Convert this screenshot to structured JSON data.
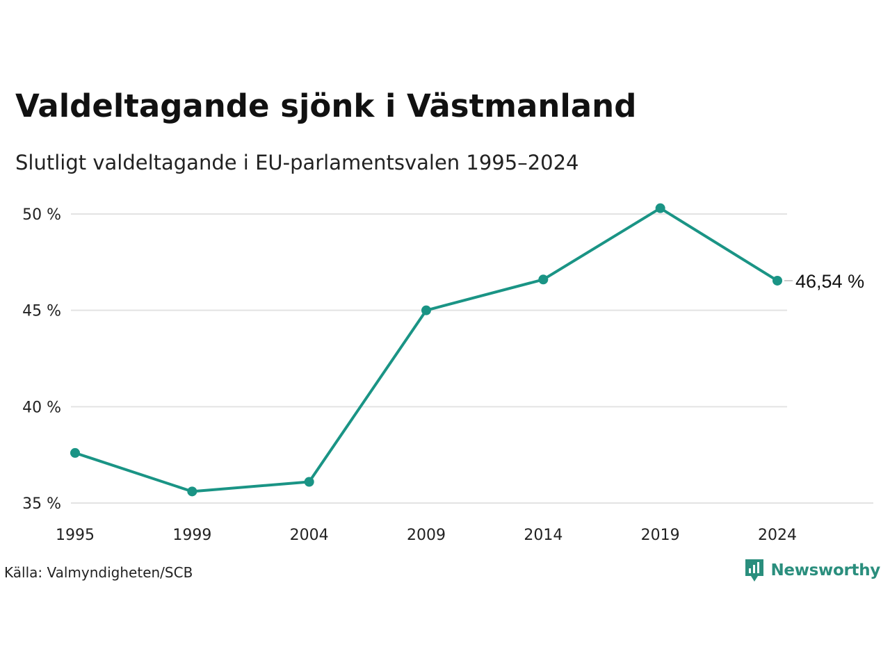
{
  "header": {
    "title": "Valdeltagande sjönk i Västmanland",
    "subtitle": "Slutligt valdeltagande i EU-parlamentsvalen 1995–2024"
  },
  "footer": {
    "source": "Källa: Valmyndigheten/SCB",
    "logo_text": "Newsworthy",
    "logo_icon": "bar-chart-speech-bubble-icon"
  },
  "colors": {
    "line": "#1a9485",
    "grid": "#e3e3e3",
    "logo": "#2a8e7d"
  },
  "chart_data": {
    "type": "line",
    "x": [
      "1995",
      "1999",
      "2004",
      "2009",
      "2014",
      "2019",
      "2024"
    ],
    "series": [
      {
        "values": [
          37.6,
          35.6,
          36.1,
          45.0,
          46.6,
          50.3,
          46.54
        ]
      }
    ],
    "ylim": [
      35,
      50
    ],
    "yticks": [
      35,
      40,
      45,
      50
    ],
    "ytick_labels": [
      "35 %",
      "40 %",
      "45 %",
      "50 %"
    ],
    "end_label": "46,54 %",
    "grid": true,
    "legend": "none"
  }
}
